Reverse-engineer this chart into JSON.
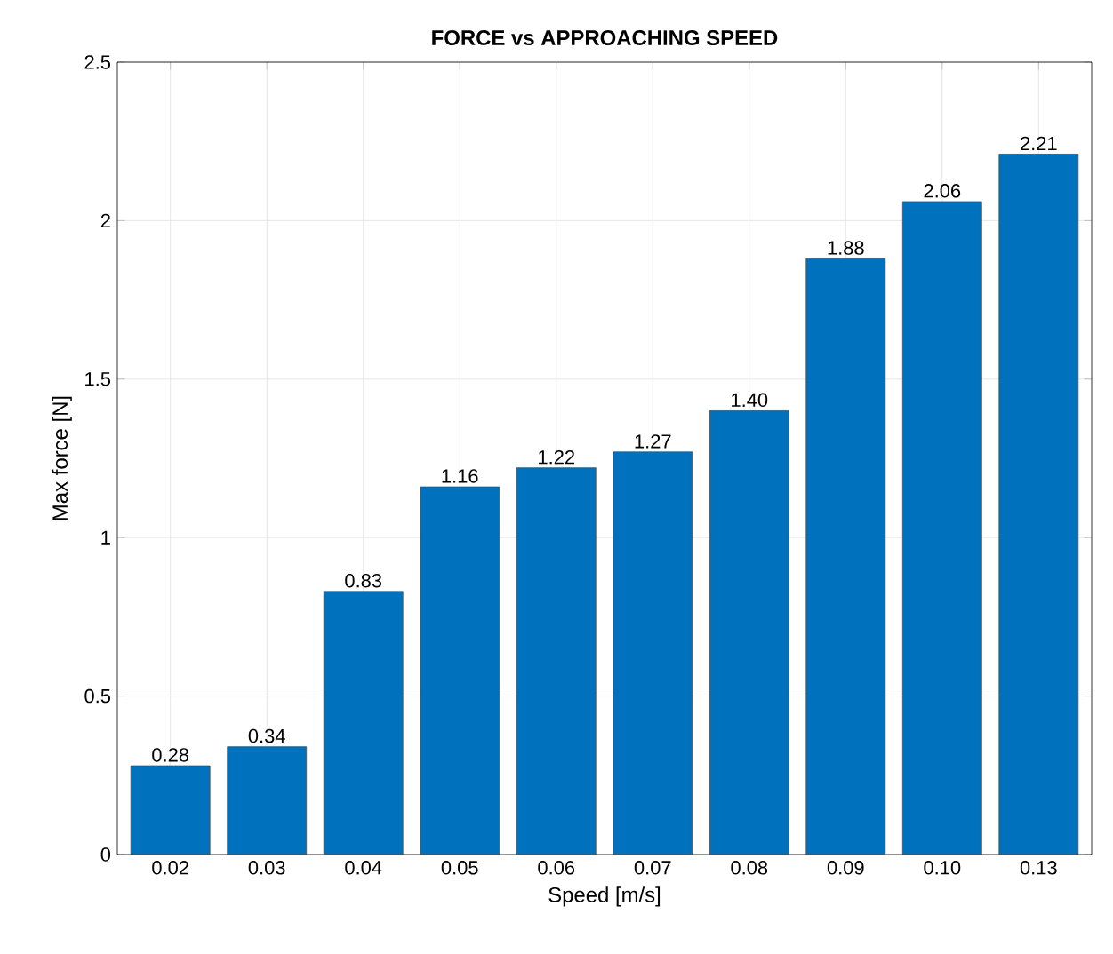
{
  "chart_data": {
    "type": "bar",
    "title": "FORCE vs APPROACHING SPEED",
    "xlabel": "Speed [m/s]",
    "ylabel": "Max force [N]",
    "categories": [
      "0.02",
      "0.03",
      "0.04",
      "0.05",
      "0.06",
      "0.07",
      "0.08",
      "0.09",
      "0.10",
      "0.13"
    ],
    "values": [
      0.28,
      0.34,
      0.83,
      1.16,
      1.22,
      1.27,
      1.4,
      1.88,
      2.06,
      2.21
    ],
    "value_labels": [
      "0.28",
      "0.34",
      "0.83",
      "1.16",
      "1.22",
      "1.27",
      "1.40",
      "1.88",
      "2.06",
      "2.21"
    ],
    "color": "#0072bd",
    "ylim": [
      0,
      2.5
    ],
    "yticks": [
      0,
      0.5,
      1,
      1.5,
      2,
      2.5
    ],
    "grid": true
  }
}
